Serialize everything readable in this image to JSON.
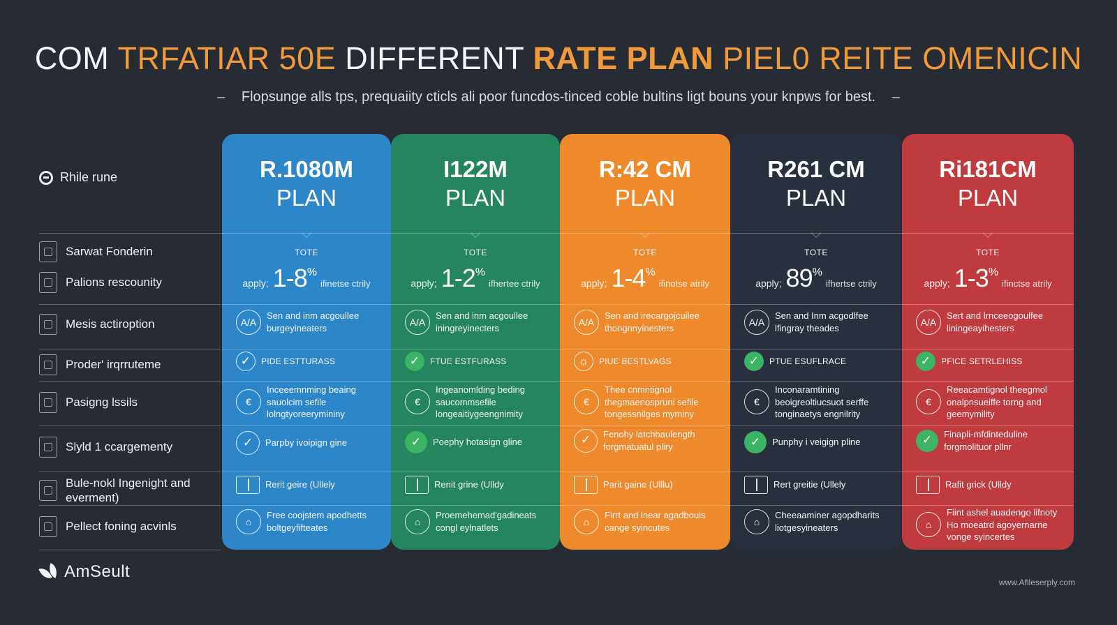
{
  "title": {
    "part1": "COM",
    "part2": "TRFATIAR 50E",
    "part3": "DIFFERENT",
    "part4": "RATE PLAN",
    "part5": "PIEL0 REITE OMENICIN"
  },
  "subtitle": {
    "text": "Flopsunge alls tps, prequaiity cticls ali poor funcdos-tinced coble bultins ligt bouns your knpws for best.",
    "dash_left": "–",
    "dash_right": "–"
  },
  "sidebar": {
    "header": "Rhile rune",
    "rows": [
      "Sarwat Fonderin",
      "Palions rescounity",
      "Mesis actiroption",
      "Proder' irqrruteme",
      "Pasigng lssils",
      "Slyld 1 ccargementy",
      "Bule-nokl Ingenight and everment)",
      "Pellect foning acvinls"
    ]
  },
  "plans": [
    {
      "code": "R.1080M",
      "word": "PLAN",
      "color": "#2d86c8",
      "tote": "TOTE",
      "rate_pre": "apply;",
      "rate": "1-8",
      "rate_sup": "%",
      "rate_post": "ifinetse ctrily",
      "feature1": "Sen and inm acgoullee burgeyineaters",
      "feature2": "PIDE ESTTURASS",
      "feature3": "Inceeemnming beaing sauolcim sefile lolngtyoreerymininy",
      "feature4": "Parpby ivoipign gine",
      "feature5": "Rerit geire (Ullely",
      "feature6": "Free coojstem apodhetts boltgeyfifteates"
    },
    {
      "code": "I122M",
      "word": "PLAN",
      "color": "#24855f",
      "tote": "TOTE",
      "rate_pre": "apply;",
      "rate": "1-2",
      "rate_sup": "%",
      "rate_post": "ifhertee ctrily",
      "feature1": "Sen and inm acgoullee iningreyinecters",
      "feature2": "FTUE ESTFURASS",
      "feature3": "Ingeanomlding beding saucommsefile longeaitiygeengnimity",
      "feature4": "Poephy hotasign gline",
      "feature5": "Renit grine (Ulldy",
      "feature6": "Proemehemad'gadineats congl eylnatlets"
    },
    {
      "code": "R:42 CM",
      "word": "PLAN",
      "color": "#ee8a2c",
      "tote": "TOTE",
      "rate_pre": "apply;",
      "rate": "1-4",
      "rate_sup": "%",
      "rate_post": "ifinotse atrily",
      "feature1": "Sen and irecargojcuilee thongnnyinesters",
      "feature2": "PIUE BESTLVAGS",
      "feature3": "Thee cnmntignol thegmaenospruni sefile tongessnilges myminy",
      "feature4": "Fenohy latchbaulength forgmatuatul pliry",
      "feature5": "Parit gaine (Ulllu)",
      "feature6": "Firrt and lnear agadbouls cange syincutes"
    },
    {
      "code": "R261 CM",
      "word": "PLAN",
      "color": "#28303d",
      "tote": "TOTE",
      "rate_pre": "apply;",
      "rate": "89",
      "rate_sup": "%",
      "rate_post": "ifhertse ctrily",
      "feature1": "Sen and Inm acgodlfee lfingray theades",
      "feature2": "PTUE ESUFLRACE",
      "feature3": "Inconaramtining beoigreoltiucsuot serffe tonginaetys engnilrity",
      "feature4": "Punphy i veigign pline",
      "feature5": "Rert greitie (Ullely",
      "feature6": "Cheeaaminer agopdharits liotgesyineaters"
    },
    {
      "code": "Ri181CM",
      "word": "PLAN",
      "color": "#bf3b3e",
      "tote": "TOTE",
      "rate_pre": "apply;",
      "rate": "1-3",
      "rate_sup": "%",
      "rate_post": "ifinctse atrily",
      "feature1": "Sert and lrnceeogoulfee liningeayihesters",
      "feature2": "PFICE SETRLEHISS",
      "feature3": "Reeacamtignol theegmol onalpnsueiffe torng and geemymility",
      "feature4": "Finapli-mfdinteduline forgmolituor pllnr",
      "feature5": "Rafit grick (Ulldy",
      "feature6": "Fiint ashel auadengo lifnoty Ho moeatrd agoyernarne vonge syincertes"
    }
  ],
  "brand": "AmSeult",
  "url": "www.Aflleserply.com"
}
